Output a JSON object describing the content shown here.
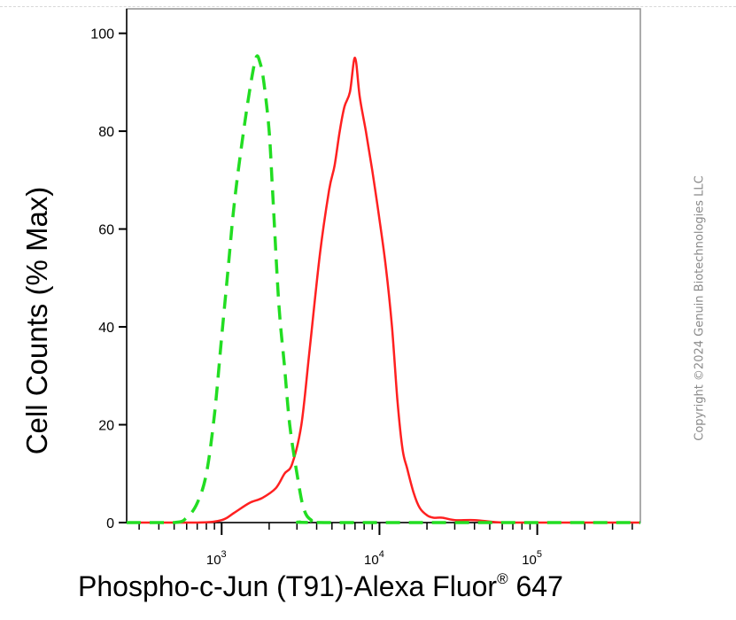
{
  "chart_data": {
    "type": "line",
    "xlabel": {
      "main": "Phospho-c-Jun (T91)-Alexa Fluor",
      "sup": "®",
      "tail": " 647"
    },
    "ylabel": "Cell Counts (% Max)",
    "x_scale": "log",
    "xlim": [
      250,
      450000
    ],
    "ylim": [
      0,
      105
    ],
    "y_ticks": [
      "0",
      "20",
      "40",
      "60",
      "80",
      "100"
    ],
    "x_ticks": [
      {
        "value": 1000,
        "base": "10",
        "exp": "3"
      },
      {
        "value": 10000,
        "base": "10",
        "exp": "4"
      },
      {
        "value": 100000,
        "base": "10",
        "exp": "5"
      }
    ],
    "grid": false,
    "series": [
      {
        "color": "#ff2020",
        "style": "solid",
        "x": [
          250,
          700,
          1000,
          1200,
          1500,
          1800,
          2200,
          2500,
          2800,
          3200,
          3600,
          4200,
          4800,
          5200,
          5600,
          6000,
          6500,
          7000,
          7500,
          8200,
          9000,
          10000,
          11000,
          12000,
          13000,
          14000,
          15000,
          16500,
          18000,
          20000,
          22000,
          25000,
          30000,
          40000,
          60000,
          100000,
          450000
        ],
        "y": [
          0,
          0,
          0.5,
          2,
          4,
          5,
          7,
          10,
          12,
          20,
          35,
          55,
          68,
          73,
          80,
          85,
          88,
          95,
          87,
          80,
          72,
          62,
          52,
          40,
          25,
          15,
          11,
          6,
          3,
          1.5,
          1,
          1,
          0.5,
          0.5,
          0,
          0,
          0
        ]
      },
      {
        "color": "#22dd22",
        "style": "dashed",
        "x": [
          250,
          500,
          600,
          700,
          800,
          900,
          1000,
          1100,
          1200,
          1350,
          1500,
          1650,
          1750,
          1850,
          2000,
          2100,
          2300,
          2500,
          2700,
          3000,
          3300,
          3700,
          4500,
          450000
        ],
        "y": [
          0,
          0,
          1,
          4,
          10,
          22,
          38,
          52,
          65,
          78,
          88,
          95,
          94,
          90,
          80,
          68,
          45,
          32,
          20,
          10,
          3,
          0.5,
          0,
          0
        ]
      }
    ]
  },
  "watermark": "Copyright ©2024 Genuin Biotechnologies LLC"
}
